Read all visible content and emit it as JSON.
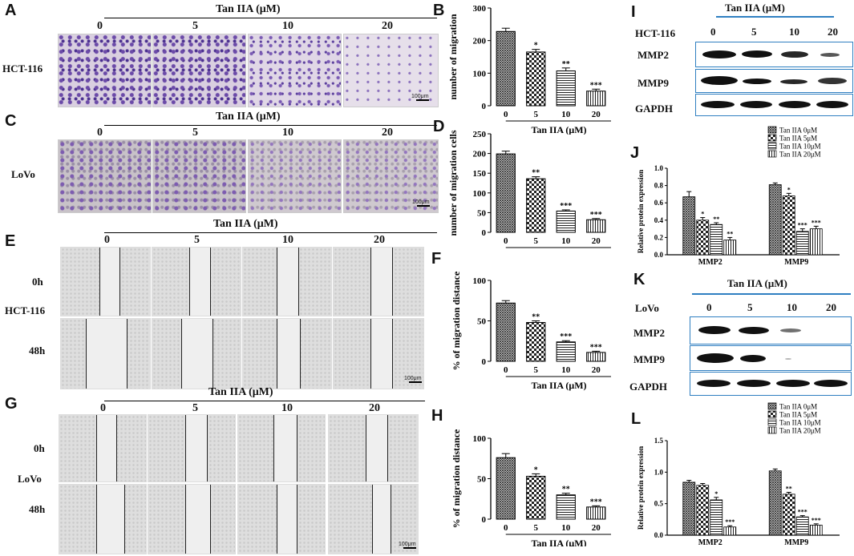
{
  "panels": {
    "A": "A",
    "B": "B",
    "C": "C",
    "D": "D",
    "E": "E",
    "F": "F",
    "G": "G",
    "H": "H",
    "I": "I",
    "J": "J",
    "K": "K",
    "L": "L"
  },
  "treatment_title": "Tan IIA (μM)",
  "doses": [
    "0",
    "5",
    "10",
    "20"
  ],
  "cell_lines": {
    "hct": "HCT-116",
    "lovo": "LoVo"
  },
  "timepoints": {
    "t0": "0h",
    "t48": "48h"
  },
  "scale_bar": "100μm",
  "blot_labels": {
    "mmp2": "MMP2",
    "mmp9": "MMP9",
    "gapdh": "GAPDH"
  },
  "chart_data": [
    {
      "panel": "B",
      "type": "bar",
      "categories": [
        "0",
        "5",
        "10",
        "20"
      ],
      "values": [
        228,
        165,
        107,
        45
      ],
      "errors": [
        10,
        8,
        9,
        6
      ],
      "significance": [
        "",
        "*",
        "**",
        "***"
      ],
      "xlabel": "Tan IIA (μM)",
      "ylabel": "number of migration",
      "ylim": [
        0,
        300
      ],
      "yticks": [
        "0",
        "100",
        "200",
        "300"
      ]
    },
    {
      "panel": "D",
      "type": "bar",
      "categories": [
        "0",
        "5",
        "10",
        "20"
      ],
      "values": [
        199,
        136,
        54,
        32
      ],
      "errors": [
        7,
        5,
        3,
        3
      ],
      "significance": [
        "",
        "**",
        "***",
        "***"
      ],
      "xlabel": "Tan IIA (μM)",
      "ylabel": "number of migration cells",
      "ylim": [
        0,
        250
      ],
      "yticks": [
        "0",
        "50",
        "100",
        "150",
        "200",
        "250"
      ]
    },
    {
      "panel": "F",
      "type": "bar",
      "categories": [
        "0",
        "5",
        "10",
        "20"
      ],
      "values": [
        72,
        48,
        24,
        11
      ],
      "errors": [
        3,
        2,
        1.5,
        1.5
      ],
      "significance": [
        "",
        "**",
        "***",
        "***"
      ],
      "xlabel": "Tan IIA (μM)",
      "ylabel": "% of migration distance",
      "ylim": [
        0,
        100
      ],
      "yticks": [
        "0",
        "50",
        "100"
      ]
    },
    {
      "panel": "H",
      "type": "bar",
      "categories": [
        "0",
        "5",
        "10",
        "20"
      ],
      "values": [
        76,
        53,
        30,
        15
      ],
      "errors": [
        5,
        3,
        2,
        1.5
      ],
      "significance": [
        "",
        "*",
        "**",
        "***"
      ],
      "xlabel": "Tan IIA (μM)",
      "ylabel": "% of migration distance",
      "ylim": [
        0,
        100
      ],
      "yticks": [
        "0",
        "50",
        "100"
      ]
    },
    {
      "panel": "J",
      "type": "bar",
      "categories": [
        "MMP2",
        "MMP9"
      ],
      "series": [
        {
          "name": "Tan IIA 0μM",
          "values": [
            0.67,
            0.81
          ],
          "errors": [
            0.06,
            0.02
          ]
        },
        {
          "name": "Tan IIA 5μM",
          "values": [
            0.4,
            0.68
          ],
          "errors": [
            0.03,
            0.03
          ]
        },
        {
          "name": "Tan IIA 10μM",
          "values": [
            0.35,
            0.27
          ],
          "errors": [
            0.02,
            0.03
          ]
        },
        {
          "name": "Tan IIA 20μM",
          "values": [
            0.17,
            0.3
          ],
          "errors": [
            0.03,
            0.03
          ]
        }
      ],
      "significance": [
        [
          "",
          "*",
          "**",
          "**"
        ],
        [
          "",
          "*",
          "***",
          "***"
        ]
      ],
      "ylabel": "Relative protein expression",
      "ylim": [
        0,
        1.0
      ],
      "yticks": [
        "0.0",
        "0.2",
        "0.4",
        "0.6",
        "0.8",
        "1.0"
      ],
      "legend": "top-right"
    },
    {
      "panel": "L",
      "type": "bar",
      "categories": [
        "MMP2",
        "MMP9"
      ],
      "series": [
        {
          "name": "Tan IIA 0μM",
          "values": [
            0.84,
            1.02
          ],
          "errors": [
            0.03,
            0.03
          ]
        },
        {
          "name": "Tan IIA 5μM",
          "values": [
            0.79,
            0.65
          ],
          "errors": [
            0.03,
            0.03
          ]
        },
        {
          "name": "Tan IIA 10μM",
          "values": [
            0.56,
            0.29
          ],
          "errors": [
            0.04,
            0.02
          ]
        },
        {
          "name": "Tan IIA 20μM",
          "values": [
            0.13,
            0.16
          ],
          "errors": [
            0.02,
            0.02
          ]
        }
      ],
      "significance": [
        [
          "",
          "",
          "*",
          "***"
        ],
        [
          "",
          "**",
          "***",
          "***"
        ]
      ],
      "ylabel": "Relative protein expression",
      "ylim": [
        0,
        1.5
      ],
      "yticks": [
        "0.0",
        "0.5",
        "1.0",
        "1.5"
      ],
      "legend": "top-right"
    }
  ]
}
